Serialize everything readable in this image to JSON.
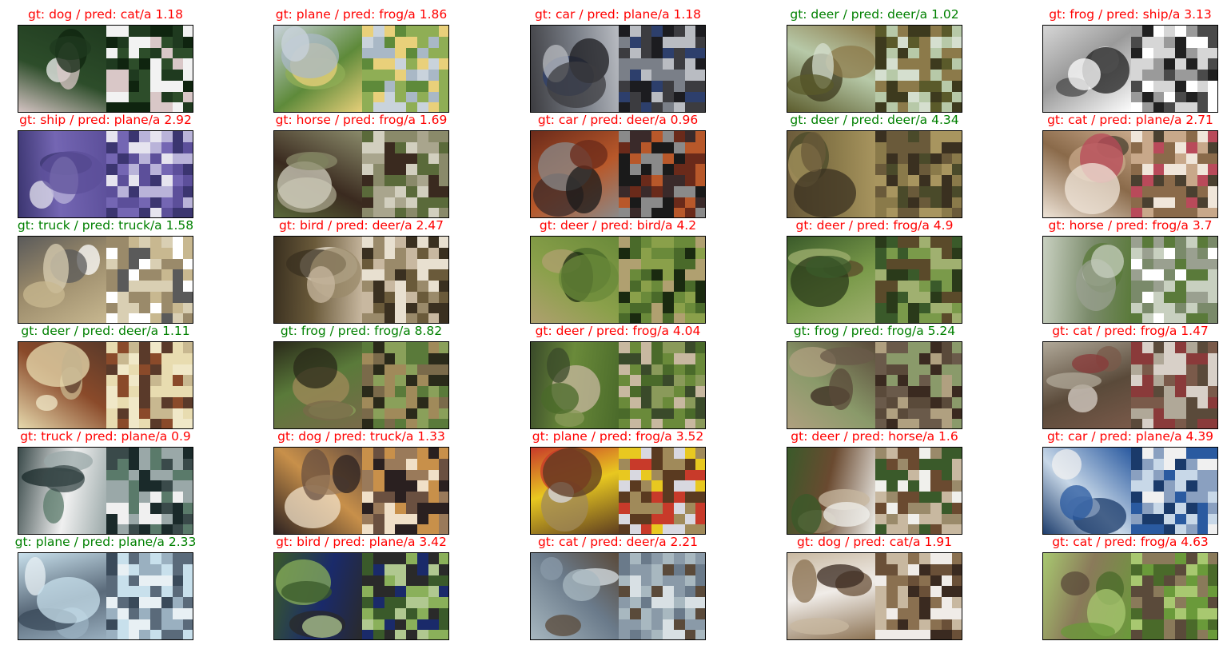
{
  "colors": {
    "correct": "#008000",
    "wrong": "#ff0000",
    "frame": "#000000"
  },
  "panels": [
    {
      "caption": "gt: dog / pred: cat/a 1.18",
      "correct": false,
      "palette": [
        "#1f3a1f",
        "#2d4d2a",
        "#f2f2f2",
        "#d9c7c7",
        "#0f240f"
      ]
    },
    {
      "caption": "gt: plane / pred: frog/a 1.86",
      "correct": false,
      "palette": [
        "#c9d3dc",
        "#5e8a3a",
        "#8fae55",
        "#e9d07a",
        "#a9b8c6"
      ]
    },
    {
      "caption": "gt: car / pred: plane/a 1.18",
      "correct": false,
      "palette": [
        "#3c3c40",
        "#7a7f88",
        "#2d3f6c",
        "#b9bcc2",
        "#1c1c20"
      ]
    },
    {
      "caption": "gt: deer / pred: deer/a 1.02",
      "correct": true,
      "palette": [
        "#5a5a2a",
        "#b7c9a8",
        "#3d3a1e",
        "#8c7a4a",
        "#d5dfcf"
      ]
    },
    {
      "caption": "gt: frog / pred: ship/a 3.13",
      "correct": false,
      "palette": [
        "#ffffff",
        "#9a9a9a",
        "#4a4a4a",
        "#d6d6d6",
        "#202020"
      ]
    },
    {
      "caption": "gt: ship / pred: plane/a 2.92",
      "correct": false,
      "palette": [
        "#5c4f9a",
        "#7466b3",
        "#e6e4ef",
        "#3b3570",
        "#b9b3d9"
      ]
    },
    {
      "caption": "gt: horse / pred: frog/a 1.69",
      "correct": false,
      "palette": [
        "#8a8a6a",
        "#3a2a1f",
        "#a9a58d",
        "#5a6a3a",
        "#d2cfbf"
      ]
    },
    {
      "caption": "gt: car / pred: deer/a 0.96",
      "correct": false,
      "palette": [
        "#6a2a1a",
        "#b8582a",
        "#3a2a2a",
        "#8a8a8a",
        "#1a1a1a"
      ]
    },
    {
      "caption": "gt: deer / pred: deer/a 4.34",
      "correct": true,
      "palette": [
        "#6a5a3a",
        "#8a7a4a",
        "#4a4a2a",
        "#a8955f",
        "#3a3020"
      ]
    },
    {
      "caption": "gt: cat / pred: plane/a 2.71",
      "correct": false,
      "palette": [
        "#f0e6da",
        "#8a6a4a",
        "#4a4030",
        "#c8a88a",
        "#b94a5a"
      ]
    },
    {
      "caption": "gt: truck / pred: truck/a 1.58",
      "correct": true,
      "palette": [
        "#c8b890",
        "#9a8a6a",
        "#ffffff",
        "#5a5a5a",
        "#d9cfb3"
      ]
    },
    {
      "caption": "gt: bird / pred: deer/a 2.47",
      "correct": false,
      "palette": [
        "#c8b8a0",
        "#6a5a3a",
        "#e8e0d0",
        "#3a3020",
        "#9a8a6a"
      ]
    },
    {
      "caption": "gt: deer / pred: bird/a 4.2",
      "correct": false,
      "palette": [
        "#6a8a3a",
        "#8aa04a",
        "#4a6a2a",
        "#b0a070",
        "#1a2a10"
      ]
    },
    {
      "caption": "gt: deer / pred: frog/a 4.9",
      "correct": false,
      "palette": [
        "#3a5a2a",
        "#7a9a4a",
        "#5a4a2a",
        "#a0b070",
        "#2a3a1a"
      ]
    },
    {
      "caption": "gt: horse / pred: frog/a 3.7",
      "correct": false,
      "palette": [
        "#c8d0c0",
        "#7a8a6a",
        "#ffffff",
        "#5a7a3a",
        "#9aa090"
      ]
    },
    {
      "caption": "gt: deer / pred: deer/a 1.11",
      "correct": true,
      "palette": [
        "#e8dcb0",
        "#8a4a2a",
        "#c8b890",
        "#5a3a2a",
        "#f0e8c8"
      ]
    },
    {
      "caption": "gt: frog / pred: frog/a 8.82",
      "correct": true,
      "palette": [
        "#7a6a4a",
        "#5a7a3a",
        "#a08a5a",
        "#2a2a1a",
        "#8aa05a"
      ]
    },
    {
      "caption": "gt: deer / pred: frog/a 4.04",
      "correct": false,
      "palette": [
        "#4a6a2a",
        "#6a8a3a",
        "#c8b8a0",
        "#3a4a2a",
        "#8a9a5a"
      ]
    },
    {
      "caption": "gt: frog / pred: frog/a 5.24",
      "correct": true,
      "palette": [
        "#5a4a3a",
        "#8a9a6a",
        "#3a2a20",
        "#b0a080",
        "#6a5a4a"
      ]
    },
    {
      "caption": "gt: cat / pred: frog/a 1.47",
      "correct": false,
      "palette": [
        "#b0a898",
        "#5a4a3a",
        "#d8d0c8",
        "#7a5a4a",
        "#8a3a3a"
      ]
    },
    {
      "caption": "gt: truck / pred: plane/a 0.9",
      "correct": false,
      "palette": [
        "#3a4a4a",
        "#f0f0f0",
        "#5a7a6a",
        "#9aa8a8",
        "#1a2a2a"
      ]
    },
    {
      "caption": "gt: dog / pred: truck/a 1.33",
      "correct": false,
      "palette": [
        "#2a2020",
        "#c8904a",
        "#f0e0c8",
        "#6a5040",
        "#9a7a5a"
      ]
    },
    {
      "caption": "gt: plane / pred: frog/a 3.52",
      "correct": false,
      "palette": [
        "#5a3a20",
        "#e8c820",
        "#a08a5a",
        "#c83a2a",
        "#d8d8e0"
      ]
    },
    {
      "caption": "gt: deer / pred: horse/a 1.6",
      "correct": false,
      "palette": [
        "#f0f0ec",
        "#6a4a30",
        "#9a8a6a",
        "#3a5a2a",
        "#c8b8a0"
      ]
    },
    {
      "caption": "gt: car / pred: plane/a 4.39",
      "correct": false,
      "palette": [
        "#2a5aa0",
        "#c8d8e8",
        "#f0f0f0",
        "#1a3a6a",
        "#8aa0c0"
      ]
    },
    {
      "caption": "gt: plane / pred: plane/a 2.33",
      "correct": true,
      "palette": [
        "#c8e0ec",
        "#5a6a7a",
        "#e8f0f4",
        "#9ab0c0",
        "#3a4a5a"
      ]
    },
    {
      "caption": "gt: bird / pred: plane/a 3.42",
      "correct": false,
      "palette": [
        "#3a5a2a",
        "#1a2a6a",
        "#8ab05a",
        "#2a2a2a",
        "#b0c890"
      ]
    },
    {
      "caption": "gt: cat / pred: deer/a 2.21",
      "correct": false,
      "palette": [
        "#a8b8c0",
        "#6a7a8a",
        "#d8e0e4",
        "#5a4a3a",
        "#8a9aa8"
      ]
    },
    {
      "caption": "gt: dog / pred: cat/a 1.91",
      "correct": false,
      "palette": [
        "#8a7050",
        "#f0ece8",
        "#6a5038",
        "#c8b8a0",
        "#3a2a20"
      ]
    },
    {
      "caption": "gt: cat / pred: frog/a 4.63",
      "correct": false,
      "palette": [
        "#6a9a3a",
        "#8a7a5a",
        "#4a6a2a",
        "#a8c870",
        "#5a4a3a"
      ]
    }
  ]
}
